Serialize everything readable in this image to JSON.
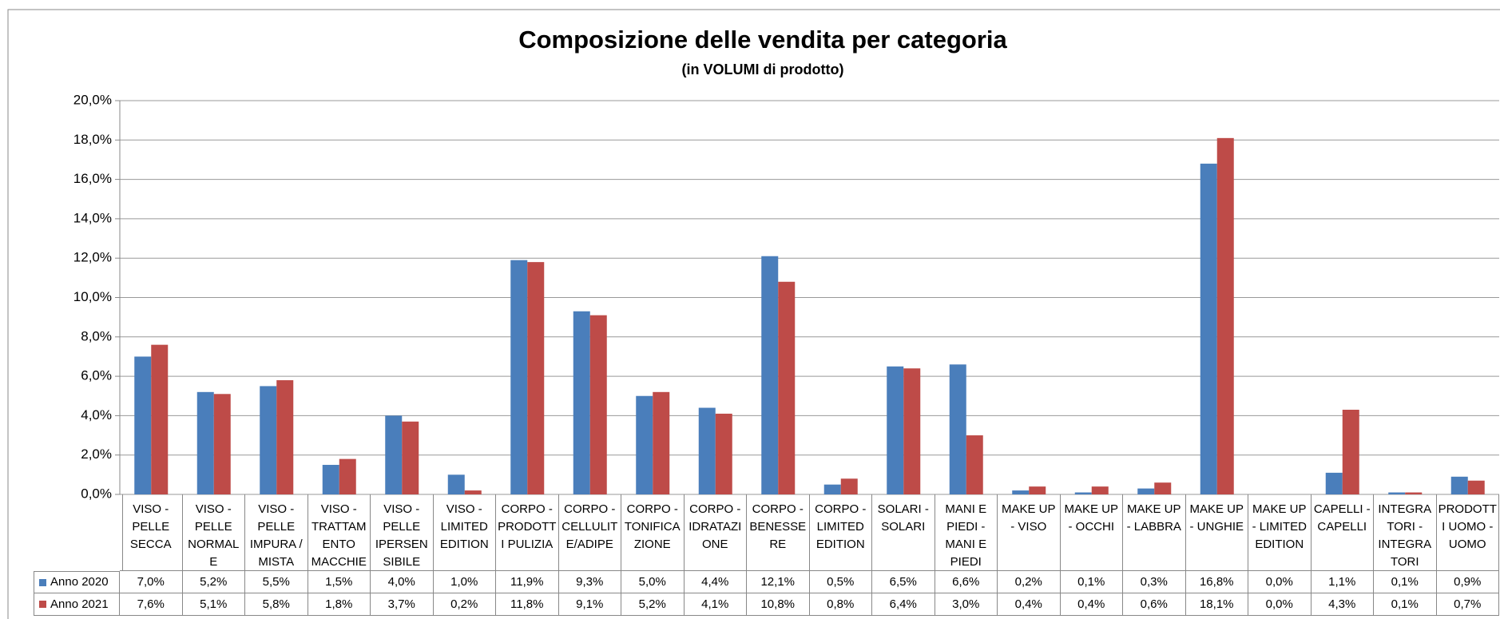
{
  "chart_data": {
    "type": "bar",
    "title": "Composizione delle vendita per categoria",
    "subtitle": "(in VOLUMI di prodotto)",
    "categories": [
      "VISO - PELLE SECCA",
      "VISO - PELLE NORMALE",
      "VISO - PELLE IMPURA / MISTA",
      "VISO - TRATTAMENTO MACCHIE",
      "VISO - PELLE IPERSENSIBILE",
      "VISO - LIMITED EDITION",
      "CORPO - PRODOTTI PULIZIA",
      "CORPO - CELLULITE/ADIPE",
      "CORPO - TONIFICAZIONE",
      "CORPO - IDRATAZIONE",
      "CORPO - BENESSERE",
      "CORPO - LIMITED EDITION",
      "SOLARI - SOLARI",
      "MANI E PIEDI - MANI E PIEDI",
      "MAKE UP - VISO",
      "MAKE UP - OCCHI",
      "MAKE UP - LABBRA",
      "MAKE UP - UNGHIE",
      "MAKE UP - LIMITED EDITION",
      "CAPELLI - CAPELLI",
      "INTEGRATORI - INTEGRATORI",
      "PRODOTTI UOMO - UOMO"
    ],
    "series": [
      {
        "name": "Anno 2020",
        "color": "#4a7ebb",
        "values": [
          7.0,
          5.2,
          5.5,
          1.5,
          4.0,
          1.0,
          11.9,
          9.3,
          5.0,
          4.4,
          12.1,
          0.5,
          6.5,
          6.6,
          0.2,
          0.1,
          0.3,
          16.8,
          0.0,
          1.1,
          0.1,
          0.9
        ],
        "value_labels": [
          "7,0%",
          "5,2%",
          "5,5%",
          "1,5%",
          "4,0%",
          "1,0%",
          "11,9%",
          "9,3%",
          "5,0%",
          "4,4%",
          "12,1%",
          "0,5%",
          "6,5%",
          "6,6%",
          "0,2%",
          "0,1%",
          "0,3%",
          "16,8%",
          "0,0%",
          "1,1%",
          "0,1%",
          "0,9%"
        ]
      },
      {
        "name": "Anno 2021",
        "color": "#be4b48",
        "values": [
          7.6,
          5.1,
          5.8,
          1.8,
          3.7,
          0.2,
          11.8,
          9.1,
          5.2,
          4.1,
          10.8,
          0.8,
          6.4,
          3.0,
          0.4,
          0.4,
          0.6,
          18.1,
          0.0,
          4.3,
          0.1,
          0.7
        ],
        "value_labels": [
          "7,6%",
          "5,1%",
          "5,8%",
          "1,8%",
          "3,7%",
          "0,2%",
          "11,8%",
          "9,1%",
          "5,2%",
          "4,1%",
          "10,8%",
          "0,8%",
          "6,4%",
          "3,0%",
          "0,4%",
          "0,4%",
          "0,6%",
          "18,1%",
          "0,0%",
          "4,3%",
          "0,1%",
          "0,7%"
        ]
      }
    ],
    "ylim": [
      0,
      20
    ],
    "yticks": [
      {
        "value": 0,
        "label": "0,0%"
      },
      {
        "value": 2,
        "label": "2,0%"
      },
      {
        "value": 4,
        "label": "4,0%"
      },
      {
        "value": 6,
        "label": "6,0%"
      },
      {
        "value": 8,
        "label": "8,0%"
      },
      {
        "value": 10,
        "label": "10,0%"
      },
      {
        "value": 12,
        "label": "12,0%"
      },
      {
        "value": 14,
        "label": "14,0%"
      },
      {
        "value": 16,
        "label": "16,0%"
      },
      {
        "value": 18,
        "label": "18,0%"
      },
      {
        "value": 20,
        "label": "20,0%"
      }
    ],
    "grid": true
  }
}
